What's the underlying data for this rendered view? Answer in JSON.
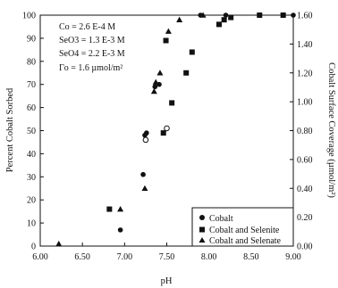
{
  "chart_data": {
    "type": "scatter",
    "xlabel": "pH",
    "ylabel": "Percent Cobalt Sorbed",
    "y2label": "Cobalt Surface Coverage (µmol/m²)",
    "xlim": [
      6.0,
      9.0
    ],
    "ylim": [
      0,
      100
    ],
    "y2lim": [
      0,
      1.6
    ],
    "grid": false,
    "legend_position": "bottom-right",
    "x_ticks": [
      "6.00",
      "6.50",
      "7.00",
      "7.50",
      "8.00",
      "8.50",
      "9.00"
    ],
    "y_ticks": [
      "0",
      "10",
      "20",
      "30",
      "40",
      "50",
      "60",
      "70",
      "80",
      "90",
      "100"
    ],
    "y2_ticks": [
      "0.00",
      "0.20",
      "0.40",
      "0.60",
      "0.80",
      "1.00",
      "1.20",
      "1.40",
      "1.60"
    ],
    "annotations": [
      "Co = 2.6 E-4 M",
      "SeO3 = 1.3 E-3 M",
      "SeO4 = 2.2 E-3 M",
      "Γo = 1.6 µmol/m²"
    ],
    "series": [
      {
        "name": "Cobalt",
        "marker": "circle",
        "points": [
          [
            6.95,
            7
          ],
          [
            7.22,
            31
          ],
          [
            7.24,
            48
          ],
          [
            7.26,
            49
          ],
          [
            7.36,
            69
          ],
          [
            7.41,
            70
          ],
          [
            7.9,
            100
          ],
          [
            8.2,
            100
          ],
          [
            8.6,
            100
          ],
          [
            8.88,
            100
          ],
          [
            9.0,
            100
          ]
        ]
      },
      {
        "name": "Cobalt and Selenite",
        "marker": "square",
        "points": [
          [
            6.82,
            16
          ],
          [
            7.46,
            49
          ],
          [
            7.49,
            89
          ],
          [
            7.56,
            62
          ],
          [
            7.73,
            75
          ],
          [
            7.8,
            84
          ],
          [
            8.12,
            96
          ],
          [
            8.18,
            98
          ],
          [
            8.26,
            99
          ],
          [
            8.6,
            100
          ],
          [
            8.88,
            100
          ]
        ]
      },
      {
        "name": "Cobalt and Selenate",
        "marker": "triangle",
        "points": [
          [
            6.22,
            1
          ],
          [
            6.95,
            16
          ],
          [
            7.24,
            25
          ],
          [
            7.35,
            67
          ],
          [
            7.37,
            71
          ],
          [
            7.42,
            75
          ],
          [
            7.52,
            93
          ],
          [
            7.65,
            98
          ],
          [
            7.93,
            100
          ]
        ]
      }
    ],
    "open_points": [
      [
        7.25,
        46
      ],
      [
        7.5,
        51
      ]
    ]
  }
}
